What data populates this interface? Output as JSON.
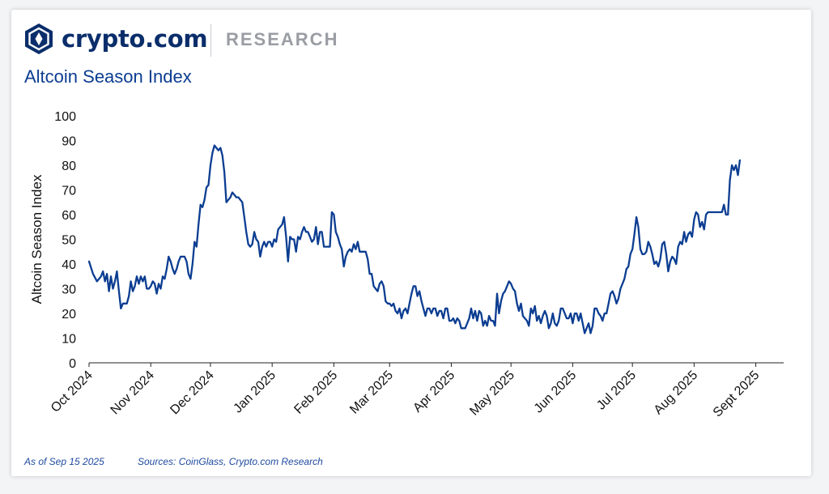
{
  "brand": {
    "name": "crypto.com",
    "section": "RESEARCH"
  },
  "colors": {
    "line": "#0b3d91",
    "title": "#0b3d91",
    "brand": "#0b2e6b",
    "footer": "#1f4aa0"
  },
  "footer": {
    "as_of": "As of Sep 15 2025",
    "sources": "Sources: CoinGlass, Crypto.com Research"
  },
  "chart_data": {
    "type": "line",
    "title": "Altcoin Season Index",
    "xlabel": "",
    "ylabel": "Altcoin Season Index",
    "ylim": [
      0,
      100
    ],
    "yticks": [
      0,
      10,
      20,
      30,
      40,
      50,
      60,
      70,
      80,
      90,
      100
    ],
    "x_range_days": [
      0,
      349
    ],
    "xticks": [
      {
        "day": 0,
        "label": "Oct 2024"
      },
      {
        "day": 31,
        "label": "Nov 2024"
      },
      {
        "day": 61,
        "label": "Dec 2024"
      },
      {
        "day": 92,
        "label": "Jan 2025"
      },
      {
        "day": 123,
        "label": "Feb 2025"
      },
      {
        "day": 151,
        "label": "Mar 2025"
      },
      {
        "day": 182,
        "label": "Apr 2025"
      },
      {
        "day": 212,
        "label": "May 2025"
      },
      {
        "day": 243,
        "label": "Jun 2025"
      },
      {
        "day": 273,
        "label": "Jul 2025"
      },
      {
        "day": 304,
        "label": "Aug 2025"
      },
      {
        "day": 335,
        "label": "Sept 2025"
      }
    ],
    "series": [
      {
        "name": "Altcoin Season Index",
        "points": [
          [
            0,
            41
          ],
          [
            2,
            36
          ],
          [
            4,
            33
          ],
          [
            6,
            35
          ],
          [
            7,
            37
          ],
          [
            8,
            33
          ],
          [
            9,
            36
          ],
          [
            10,
            29
          ],
          [
            11,
            35
          ],
          [
            12,
            30
          ],
          [
            13,
            33
          ],
          [
            14,
            37
          ],
          [
            15,
            29
          ],
          [
            16,
            22
          ],
          [
            17,
            24
          ],
          [
            19,
            24
          ],
          [
            20,
            27
          ],
          [
            21,
            33
          ],
          [
            22,
            29
          ],
          [
            23,
            31
          ],
          [
            24,
            35
          ],
          [
            25,
            32
          ],
          [
            26,
            35
          ],
          [
            27,
            33
          ],
          [
            28,
            35
          ],
          [
            29,
            30
          ],
          [
            30,
            30
          ],
          [
            31,
            31
          ],
          [
            32,
            33
          ],
          [
            33,
            32
          ],
          [
            34,
            28
          ],
          [
            35,
            32
          ],
          [
            36,
            30
          ],
          [
            37,
            35
          ],
          [
            38,
            34
          ],
          [
            39,
            38
          ],
          [
            40,
            43
          ],
          [
            41,
            41
          ],
          [
            42,
            38
          ],
          [
            43,
            36
          ],
          [
            44,
            38
          ],
          [
            45,
            41
          ],
          [
            46,
            43
          ],
          [
            48,
            43
          ],
          [
            49,
            41
          ],
          [
            50,
            36
          ],
          [
            51,
            34
          ],
          [
            52,
            40
          ],
          [
            53,
            49
          ],
          [
            54,
            47
          ],
          [
            55,
            56
          ],
          [
            56,
            64
          ],
          [
            57,
            63
          ],
          [
            58,
            66
          ],
          [
            59,
            71
          ],
          [
            60,
            72
          ],
          [
            61,
            80
          ],
          [
            62,
            85
          ],
          [
            63,
            88
          ],
          [
            64,
            87
          ],
          [
            65,
            86
          ],
          [
            66,
            87
          ],
          [
            67,
            84
          ],
          [
            68,
            77
          ],
          [
            69,
            65
          ],
          [
            70,
            66
          ],
          [
            71,
            67
          ],
          [
            72,
            69
          ],
          [
            73,
            68
          ],
          [
            74,
            67
          ],
          [
            75,
            67
          ],
          [
            76,
            66
          ],
          [
            77,
            65
          ],
          [
            78,
            59
          ],
          [
            79,
            53
          ],
          [
            80,
            48
          ],
          [
            81,
            47
          ],
          [
            82,
            48
          ],
          [
            83,
            53
          ],
          [
            84,
            50
          ],
          [
            85,
            49
          ],
          [
            86,
            43
          ],
          [
            87,
            47
          ],
          [
            88,
            49
          ],
          [
            89,
            47
          ],
          [
            90,
            49
          ],
          [
            91,
            49
          ],
          [
            92,
            47
          ],
          [
            93,
            50
          ],
          [
            94,
            49
          ],
          [
            95,
            54
          ],
          [
            96,
            55
          ],
          [
            97,
            56
          ],
          [
            98,
            59
          ],
          [
            99,
            51
          ],
          [
            100,
            41
          ],
          [
            101,
            51
          ],
          [
            102,
            50
          ],
          [
            103,
            50
          ],
          [
            104,
            45
          ],
          [
            105,
            51
          ],
          [
            106,
            50
          ],
          [
            107,
            53
          ],
          [
            108,
            55
          ],
          [
            109,
            53
          ],
          [
            110,
            53
          ],
          [
            111,
            51
          ],
          [
            112,
            49
          ],
          [
            113,
            50
          ],
          [
            114,
            55
          ],
          [
            115,
            48
          ],
          [
            116,
            53
          ],
          [
            117,
            53
          ],
          [
            118,
            47
          ],
          [
            119,
            47
          ],
          [
            120,
            47
          ],
          [
            121,
            47
          ],
          [
            122,
            61
          ],
          [
            123,
            60
          ],
          [
            124,
            53
          ],
          [
            125,
            51
          ],
          [
            126,
            48
          ],
          [
            127,
            46
          ],
          [
            128,
            39
          ],
          [
            129,
            43
          ],
          [
            130,
            45
          ],
          [
            131,
            46
          ],
          [
            132,
            45
          ],
          [
            133,
            48
          ],
          [
            134,
            46
          ],
          [
            135,
            49
          ],
          [
            136,
            45
          ],
          [
            137,
            45
          ],
          [
            138,
            45
          ],
          [
            139,
            45
          ],
          [
            140,
            42
          ],
          [
            141,
            36
          ],
          [
            142,
            36
          ],
          [
            143,
            31
          ],
          [
            144,
            30
          ],
          [
            145,
            29
          ],
          [
            146,
            32
          ],
          [
            147,
            33
          ],
          [
            148,
            31
          ],
          [
            149,
            25
          ],
          [
            150,
            24
          ],
          [
            151,
            24
          ],
          [
            152,
            23
          ],
          [
            153,
            24
          ],
          [
            154,
            21
          ],
          [
            155,
            20
          ],
          [
            156,
            22
          ],
          [
            157,
            18
          ],
          [
            158,
            21
          ],
          [
            159,
            22
          ],
          [
            160,
            20
          ],
          [
            161,
            24
          ],
          [
            162,
            28
          ],
          [
            163,
            31
          ],
          [
            164,
            31
          ],
          [
            165,
            27
          ],
          [
            166,
            29
          ],
          [
            167,
            25
          ],
          [
            168,
            22
          ],
          [
            169,
            19
          ],
          [
            170,
            22
          ],
          [
            171,
            22
          ],
          [
            172,
            20
          ],
          [
            173,
            22
          ],
          [
            174,
            22
          ],
          [
            175,
            19
          ],
          [
            176,
            21
          ],
          [
            177,
            21
          ],
          [
            178,
            18
          ],
          [
            179,
            22
          ],
          [
            180,
            22
          ],
          [
            181,
            17
          ],
          [
            182,
            17
          ],
          [
            183,
            18
          ],
          [
            184,
            16
          ],
          [
            185,
            18
          ],
          [
            186,
            17
          ],
          [
            187,
            14
          ],
          [
            188,
            14
          ],
          [
            189,
            14
          ],
          [
            190,
            16
          ],
          [
            191,
            18
          ],
          [
            192,
            22
          ],
          [
            193,
            18
          ],
          [
            194,
            21
          ],
          [
            195,
            17
          ],
          [
            196,
            21
          ],
          [
            197,
            20
          ],
          [
            198,
            15
          ],
          [
            199,
            17
          ],
          [
            200,
            15
          ],
          [
            201,
            19
          ],
          [
            202,
            17
          ],
          [
            203,
            17
          ],
          [
            204,
            15
          ],
          [
            205,
            28
          ],
          [
            206,
            20
          ],
          [
            207,
            25
          ],
          [
            208,
            28
          ],
          [
            209,
            29
          ],
          [
            210,
            31
          ],
          [
            211,
            33
          ],
          [
            212,
            32
          ],
          [
            213,
            30
          ],
          [
            214,
            29
          ],
          [
            215,
            24
          ],
          [
            216,
            21
          ],
          [
            217,
            24
          ],
          [
            218,
            19
          ],
          [
            219,
            18
          ],
          [
            220,
            17
          ],
          [
            221,
            15
          ],
          [
            222,
            22
          ],
          [
            223,
            20
          ],
          [
            224,
            23
          ],
          [
            225,
            17
          ],
          [
            226,
            19
          ],
          [
            227,
            16
          ],
          [
            228,
            19
          ],
          [
            229,
            21
          ],
          [
            230,
            19
          ],
          [
            231,
            14
          ],
          [
            232,
            16
          ],
          [
            233,
            20
          ],
          [
            234,
            16
          ],
          [
            235,
            15
          ],
          [
            236,
            17
          ],
          [
            237,
            22
          ],
          [
            238,
            22
          ],
          [
            239,
            20
          ],
          [
            240,
            18
          ],
          [
            241,
            18
          ],
          [
            242,
            20
          ],
          [
            243,
            16
          ],
          [
            244,
            20
          ],
          [
            245,
            20
          ],
          [
            246,
            17
          ],
          [
            247,
            20
          ],
          [
            248,
            16
          ],
          [
            249,
            12
          ],
          [
            250,
            14
          ],
          [
            251,
            16
          ],
          [
            252,
            12
          ],
          [
            253,
            15
          ],
          [
            254,
            22
          ],
          [
            255,
            22
          ],
          [
            256,
            20
          ],
          [
            257,
            19
          ],
          [
            258,
            17
          ],
          [
            259,
            20
          ],
          [
            260,
            20
          ],
          [
            261,
            24
          ],
          [
            262,
            28
          ],
          [
            263,
            29
          ],
          [
            264,
            27
          ],
          [
            265,
            24
          ],
          [
            266,
            26
          ],
          [
            267,
            30
          ],
          [
            268,
            32
          ],
          [
            269,
            34
          ],
          [
            270,
            38
          ],
          [
            271,
            39
          ],
          [
            272,
            44
          ],
          [
            273,
            46
          ],
          [
            274,
            52
          ],
          [
            275,
            59
          ],
          [
            276,
            55
          ],
          [
            277,
            46
          ],
          [
            278,
            44
          ],
          [
            279,
            44
          ],
          [
            280,
            45
          ],
          [
            281,
            49
          ],
          [
            282,
            47
          ],
          [
            283,
            44
          ],
          [
            284,
            40
          ],
          [
            285,
            41
          ],
          [
            286,
            39
          ],
          [
            287,
            42
          ],
          [
            288,
            48
          ],
          [
            289,
            49
          ],
          [
            290,
            44
          ],
          [
            291,
            37
          ],
          [
            292,
            41
          ],
          [
            293,
            43
          ],
          [
            294,
            42
          ],
          [
            295,
            40
          ],
          [
            296,
            47
          ],
          [
            297,
            49
          ],
          [
            298,
            48
          ],
          [
            299,
            53
          ],
          [
            300,
            49
          ],
          [
            301,
            52
          ],
          [
            302,
            53
          ],
          [
            303,
            51
          ],
          [
            304,
            58
          ],
          [
            305,
            61
          ],
          [
            306,
            60
          ],
          [
            307,
            55
          ],
          [
            308,
            57
          ],
          [
            309,
            54
          ],
          [
            310,
            60
          ],
          [
            311,
            61
          ],
          [
            312,
            61
          ],
          [
            313,
            61
          ],
          [
            314,
            61
          ],
          [
            315,
            61
          ],
          [
            316,
            61
          ],
          [
            317,
            61
          ],
          [
            318,
            61
          ],
          [
            319,
            64
          ],
          [
            320,
            60
          ],
          [
            321,
            60
          ],
          [
            322,
            74
          ],
          [
            323,
            80
          ],
          [
            324,
            78
          ],
          [
            325,
            80
          ],
          [
            326,
            76
          ],
          [
            327,
            82
          ]
        ]
      }
    ]
  }
}
